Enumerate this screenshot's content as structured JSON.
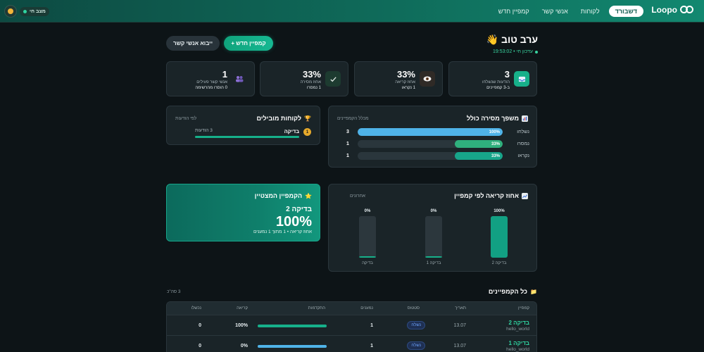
{
  "header": {
    "brand": "Loopo",
    "nav": [
      "דשבורד",
      "לקוחות",
      "אנשי קשר",
      "קמפיין חדש"
    ],
    "live_label": "מצב חי"
  },
  "greeting": {
    "title": "ערב טוב 👋",
    "updated": "עדכון חי • 19:53:02"
  },
  "actions": {
    "new_campaign": "+ קמפיין חדש",
    "import_contacts": "ייבוא אנשי קשר"
  },
  "stats": [
    {
      "value": "3",
      "label": "הודעות שנשלחו",
      "sub": "ב-3 קמפיינים",
      "icon": "inbox-icon",
      "color": "#17b08a"
    },
    {
      "value": "33%",
      "label": "אחוז קריאה",
      "sub": "1 נקראו",
      "icon": "eye-icon",
      "color": "#2f2a26"
    },
    {
      "value": "33%",
      "label": "אחוז מסירה",
      "sub": "1 נמסרו",
      "icon": "check-icon",
      "color": "#1d3b30"
    },
    {
      "value": "1",
      "label": "אנשי קשר פעילים",
      "sub": "0 הוסרו מהרשימה",
      "icon": "people-icon",
      "color": "#2c2740"
    }
  ],
  "funnel": {
    "title": "משפך מסירה כולל",
    "subtitle": "מכלל הקמפיינים",
    "rows": [
      {
        "label": "נשלחו",
        "count": "3",
        "pct_text": "100%",
        "pct": 1.0,
        "color": "#4fb3e8"
      },
      {
        "label": "נמסרו",
        "count": "1",
        "pct_text": "33%",
        "pct": 0.33,
        "color": "#2fb07d"
      },
      {
        "label": "נקראו",
        "count": "1",
        "pct_text": "33%",
        "pct": 0.33,
        "color": "#17a58a"
      }
    ]
  },
  "top_clients": {
    "title": "לקוחות מובילים",
    "subtitle": "לפי הודעות",
    "items": [
      {
        "rank": "1",
        "name": "בדיקה",
        "count": "3 הודעות",
        "pct": 1.0
      }
    ]
  },
  "featured": {
    "title": "הקמפיין המצטיין",
    "name": "בדיקה 2",
    "value": "100%",
    "sub": "אחוז קריאה • 1 מתוך 1 נמענים"
  },
  "chart_data": {
    "type": "bar",
    "title": "אחוז קריאה לפי קמפיין",
    "subtitle": "אחרונים",
    "categories": [
      "בדיקה 2",
      "בדיקה 1",
      "בדיקה"
    ],
    "values": [
      100,
      0,
      0
    ],
    "value_labels": [
      "100%",
      "0%",
      "0%"
    ],
    "ylim": [
      0,
      100
    ],
    "colors": [
      "#12a083",
      "#2c373d",
      "#2c373d"
    ]
  },
  "campaigns": {
    "title": "כל הקמפיינים",
    "count": "3 סה\"כ",
    "columns": [
      "קמפיין",
      "תאריך",
      "סטטוס",
      "נמענים",
      "התקדמות",
      "קריאה",
      "נכשלו"
    ],
    "rows": [
      {
        "name": "בדיקה 2",
        "template": "hello_world",
        "date": "13.07",
        "status": "נשלח",
        "recipients": "1",
        "progress": 1.0,
        "progress_color": "#16b08a",
        "read": "100%",
        "failed": "0"
      },
      {
        "name": "בדיקה 1",
        "template": "hello_world",
        "date": "13.07",
        "status": "נשלח",
        "recipients": "1",
        "progress": 1.0,
        "progress_color": "#4fb3e8",
        "read": "0%",
        "failed": "0"
      }
    ]
  }
}
